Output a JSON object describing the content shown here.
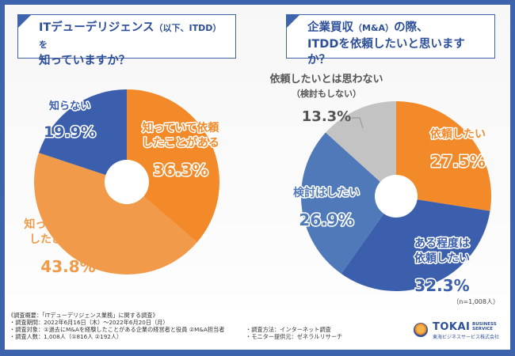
{
  "questions": {
    "left": {
      "line1": "ITデューデリジェンス",
      "line1_small": "（以下、ITDD）を",
      "line2": "知っていますか？"
    },
    "right": {
      "line1": "企業買収",
      "line1_small": "（M&A）",
      "line1_rest": "の際、",
      "line2": "ITDDを依頼したいと思いますか？"
    }
  },
  "sample_note": "（n=1,008人）",
  "colors": {
    "brand_blue": "#3d63ad",
    "orange": "#f28a2a",
    "light_orange": "#f09a4a",
    "blue": "#3b5fac",
    "mid_blue": "#4f79b9",
    "gray": "#c3c3c3"
  },
  "chart_data": [
    {
      "type": "pie",
      "title": "ITデューデリジェンス（以下、ITDD）を知っていますか？",
      "start": "top, clockwise",
      "donut_hole": true,
      "slices": [
        {
          "label_lines": [
            "知っていて依頼",
            "したことがある"
          ],
          "value": 36.3,
          "display": "36.3%",
          "color": "#f28a2a",
          "label_color": "#f28a2a"
        },
        {
          "label_lines": [
            "知っているが依頼",
            "したことはない"
          ],
          "value": 43.8,
          "display": "43.8%",
          "color": "#f09a4a",
          "label_color": "#f09a4a"
        },
        {
          "label_lines": [
            "知らない"
          ],
          "value": 19.9,
          "display": "19.9%",
          "color": "#3b5fac",
          "label_color": "#3b5fac"
        }
      ]
    },
    {
      "type": "pie",
      "title": "企業買収（M&A）の際、ITDDを依頼したいと思いますか？",
      "start": "top, clockwise",
      "donut_hole": true,
      "slices": [
        {
          "label_lines": [
            "依頼したい"
          ],
          "value": 27.5,
          "display": "27.5%",
          "color": "#f28a2a",
          "label_color": "#f28a2a"
        },
        {
          "label_lines": [
            "ある程度は",
            "依頼したい"
          ],
          "value": 32.3,
          "display": "32.3%",
          "color": "#3b5fac",
          "label_color": "#3b5fac"
        },
        {
          "label_lines": [
            "検討はしたい"
          ],
          "value": 26.9,
          "display": "26.9%",
          "color": "#4f79b9",
          "label_color": "#4f79b9"
        },
        {
          "label_lines": [
            "依頼したいとは思わない",
            "（検討もしない）"
          ],
          "value": 13.3,
          "display": "13.3%",
          "color": "#c3c3c3",
          "label_color": "#555555"
        }
      ]
    }
  ],
  "footer": {
    "heading": "《調査概要：「ITデューデリジェンス業務」に関する調査》",
    "left_items": [
      "・調査期間：2022年6月16日（木）～2022年6月20日（月）",
      "・調査対象：①過去にM&Aを経験したことがある企業の経営者と役員 ②M&A担当者",
      "・調査人数：1,008人（①816人 ②192人）"
    ],
    "right_items": [
      "・調査方法：インターネット調査",
      "・モニター提供元：ゼネラルリサーチ"
    ],
    "logo": {
      "name": "TOKAI",
      "tag_line1": "BUSINESS",
      "tag_line2": "SERVICE",
      "jp_name": "東海ビジネスサービス株式会社"
    }
  }
}
